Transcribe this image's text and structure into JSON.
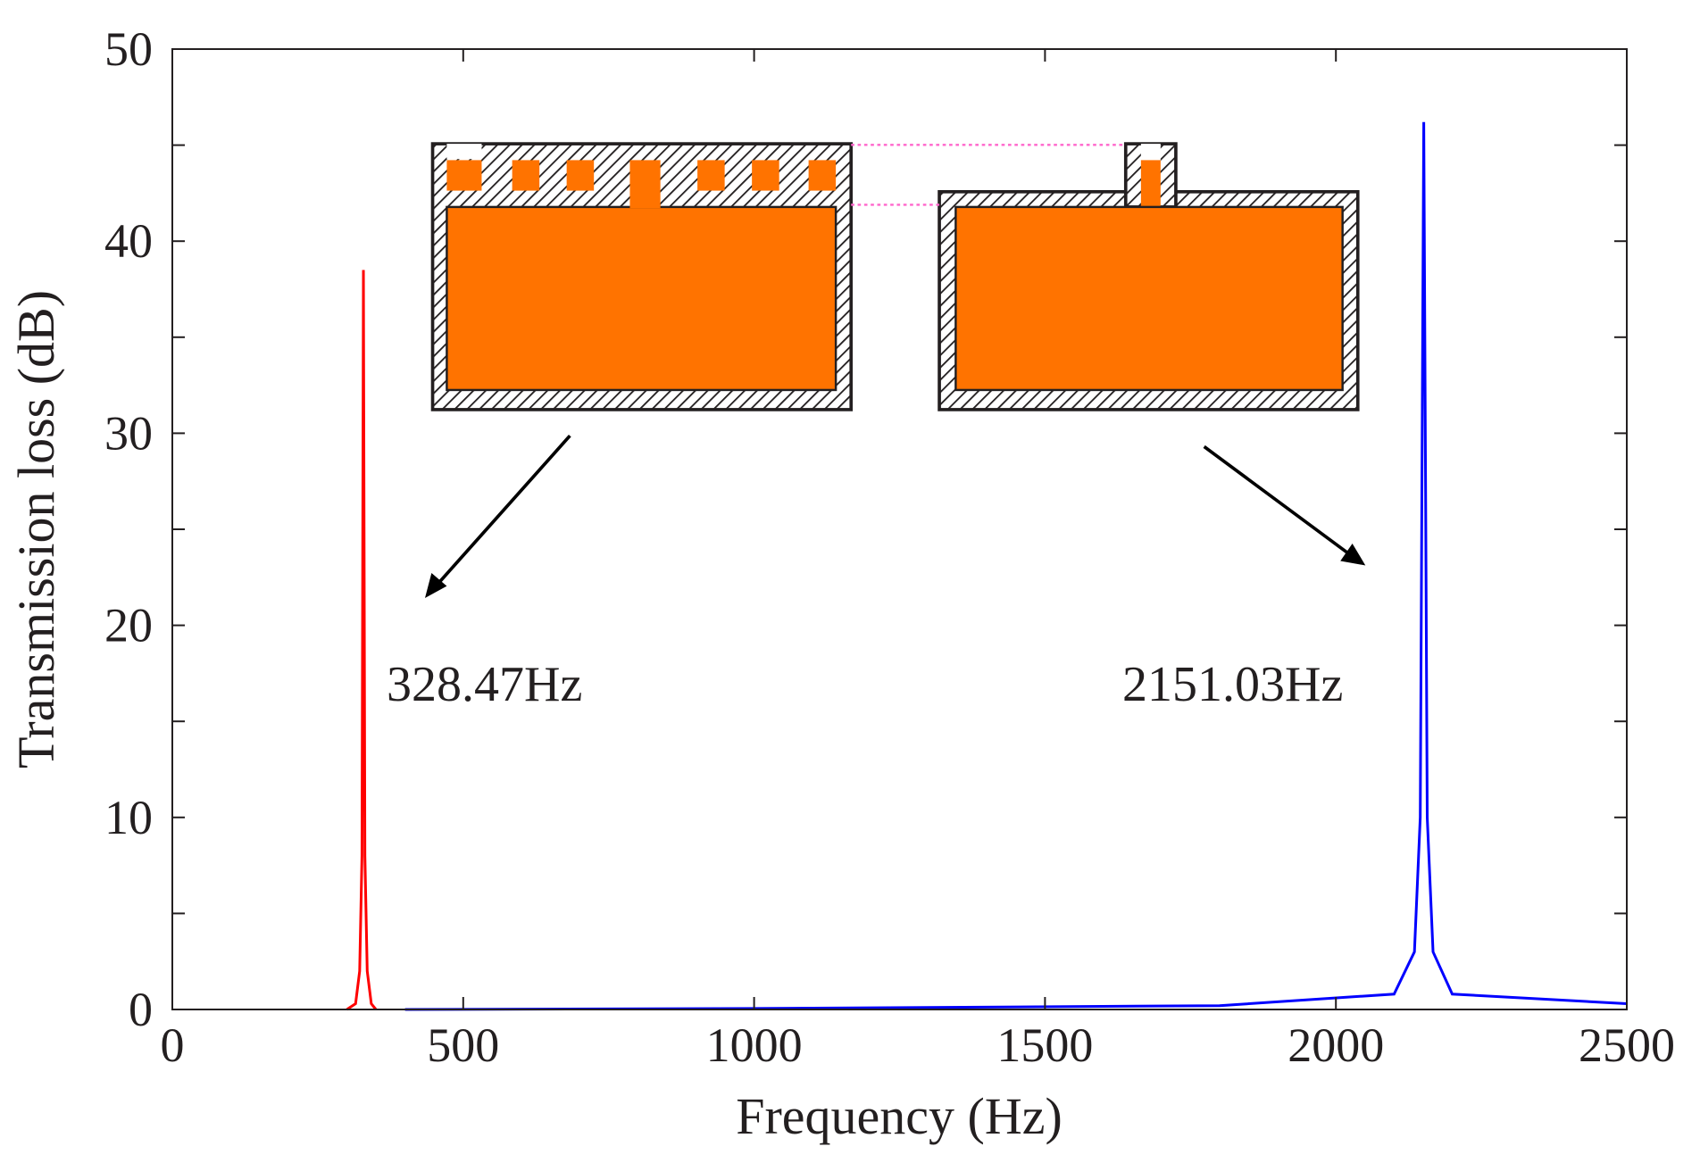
{
  "chart_data": {
    "type": "line",
    "xlabel": "Frequency (Hz)",
    "ylabel": "Transmission loss (dB)",
    "xlim": [
      0,
      2500
    ],
    "xticks": [
      0,
      500,
      1000,
      1500,
      2000,
      2500
    ],
    "ylim": [
      0,
      50
    ],
    "yticks": [
      0,
      10,
      20,
      30,
      40,
      50
    ],
    "yminorticks": [
      5,
      15,
      25,
      35,
      45
    ],
    "series": [
      {
        "color": "#ff0000",
        "x": [
          300,
          315,
          322,
          326,
          328.47,
          331,
          335,
          342,
          350
        ],
        "values": [
          0,
          0.3,
          2,
          8,
          38.5,
          8,
          2,
          0.3,
          0
        ]
      },
      {
        "color": "#0000ff",
        "x": [
          400,
          1000,
          1800,
          2100,
          2135,
          2145,
          2151.03,
          2157,
          2167,
          2200,
          2500
        ],
        "values": [
          0,
          0.05,
          0.2,
          0.8,
          3,
          10,
          46.2,
          10,
          3,
          0.8,
          0.3
        ]
      }
    ],
    "annotations": [
      "328.47Hz",
      "2151.03Hz"
    ]
  }
}
